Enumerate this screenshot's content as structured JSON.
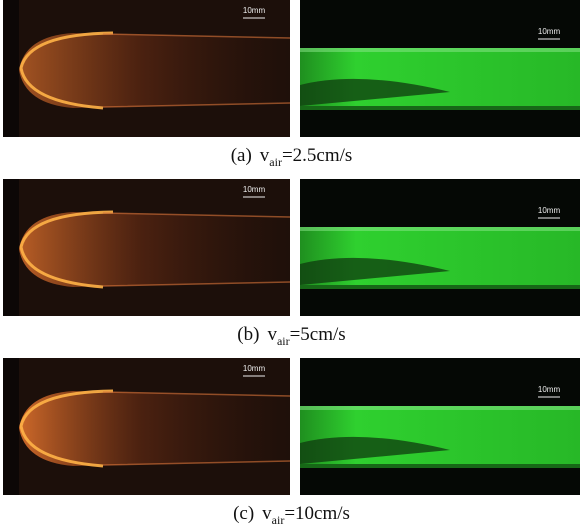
{
  "panels": [
    {
      "left_scale": "10mm",
      "right_scale": "10mm",
      "caption": {
        "label": "(a)",
        "variable": "v",
        "subscript": "air",
        "value": "=2.5cm/s"
      }
    },
    {
      "left_scale": "10mm",
      "right_scale": "10mm",
      "caption": {
        "label": "(b)",
        "variable": "v",
        "subscript": "air",
        "value": "=5cm/s"
      }
    },
    {
      "left_scale": "10mm",
      "right_scale": "10mm",
      "caption": {
        "label": "(c)",
        "variable": "v",
        "subscript": "air",
        "value": "=10cm/s"
      }
    }
  ]
}
